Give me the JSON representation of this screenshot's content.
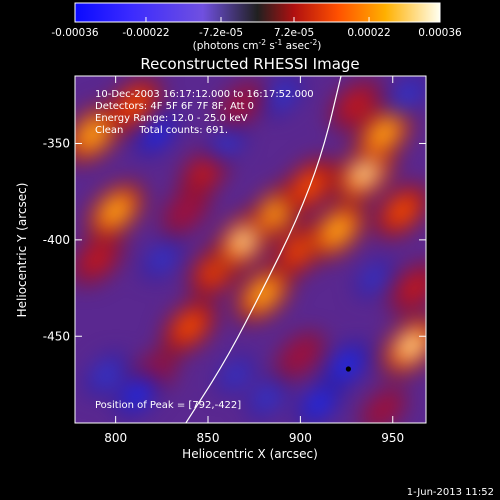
{
  "chart_data": {
    "type": "heatmap",
    "title": "Reconstructed RHESSI Image",
    "xlabel": "Heliocentric X (arcsec)",
    "ylabel": "Heliocentric Y (arcsec)",
    "xlim": [
      778,
      968
    ],
    "ylim": [
      -495,
      -315
    ],
    "xticks": [
      800,
      850,
      900,
      950
    ],
    "yticks": [
      -350,
      -400,
      -450
    ],
    "colorbar": {
      "range": [
        -0.00036,
        0.00036
      ],
      "tick_values": [
        -0.00036,
        -0.00022,
        -7.2e-05,
        7.2e-05,
        0.00022,
        0.00036
      ],
      "tick_labels": [
        "-0.00036",
        "-0.00022",
        "-7.2e-05",
        "7.2e-05",
        "0.00022",
        "0.00036"
      ],
      "unit_label_parts": [
        "(photons cm",
        "-2",
        " s",
        "-1",
        " asec",
        "-2",
        ")"
      ]
    },
    "info_lines": [
      "10-Dec-2003 16:17:12.000 to 16:17:52.000",
      "Detectors: 4F 5F 6F 7F 8F, Att 0",
      "Energy Range: 12.0 - 25.0 keV",
      "Clean     Total counts: 691."
    ],
    "peak_label": "Position of Peak = [792,-422]",
    "limb_curve": [
      [
        838,
        -495
      ],
      [
        860,
        -462
      ],
      [
        880,
        -425
      ],
      [
        898,
        -390
      ],
      [
        912,
        -355
      ],
      [
        922,
        -315
      ]
    ],
    "marker": [
      926,
      -467
    ],
    "emission_blobs": [
      {
        "x": 788,
        "y": -345,
        "v": 0.9
      },
      {
        "x": 800,
        "y": -385,
        "v": 0.85
      },
      {
        "x": 790,
        "y": -410,
        "v": 0.6
      },
      {
        "x": 810,
        "y": -330,
        "v": 0.7
      },
      {
        "x": 840,
        "y": -445,
        "v": 0.7
      },
      {
        "x": 855,
        "y": -415,
        "v": 0.75
      },
      {
        "x": 870,
        "y": -400,
        "v": 1.0
      },
      {
        "x": 880,
        "y": -428,
        "v": 0.85
      },
      {
        "x": 888,
        "y": -385,
        "v": 0.8
      },
      {
        "x": 900,
        "y": -405,
        "v": 0.7
      },
      {
        "x": 905,
        "y": -372,
        "v": 0.75
      },
      {
        "x": 920,
        "y": -395,
        "v": 0.9
      },
      {
        "x": 935,
        "y": -365,
        "v": 1.0
      },
      {
        "x": 945,
        "y": -345,
        "v": 0.85
      },
      {
        "x": 955,
        "y": -385,
        "v": 0.7
      },
      {
        "x": 930,
        "y": -330,
        "v": 0.6
      },
      {
        "x": 848,
        "y": -365,
        "v": 0.55
      },
      {
        "x": 838,
        "y": -385,
        "v": 0.45
      },
      {
        "x": 820,
        "y": -470,
        "v": 0.45
      },
      {
        "x": 960,
        "y": -455,
        "v": 0.95
      },
      {
        "x": 962,
        "y": -425,
        "v": 0.6
      },
      {
        "x": 900,
        "y": -460,
        "v": 0.45
      },
      {
        "x": 945,
        "y": -488,
        "v": 0.35
      },
      {
        "x": 868,
        "y": -330,
        "v": 0.4
      },
      {
        "x": 812,
        "y": -480,
        "v": -0.6
      },
      {
        "x": 795,
        "y": -470,
        "v": -0.5
      },
      {
        "x": 822,
        "y": -345,
        "v": -0.55
      },
      {
        "x": 860,
        "y": -350,
        "v": -0.35
      },
      {
        "x": 925,
        "y": -465,
        "v": -0.7
      },
      {
        "x": 910,
        "y": -485,
        "v": -0.6
      },
      {
        "x": 882,
        "y": -482,
        "v": -0.4
      },
      {
        "x": 890,
        "y": -325,
        "v": -0.45
      },
      {
        "x": 958,
        "y": -325,
        "v": -0.45
      },
      {
        "x": 865,
        "y": -470,
        "v": -0.3
      },
      {
        "x": 825,
        "y": -410,
        "v": -0.4
      },
      {
        "x": 940,
        "y": -420,
        "v": -0.3
      }
    ]
  },
  "footer": {
    "timestamp": "1-Jun-2013 11:52"
  }
}
